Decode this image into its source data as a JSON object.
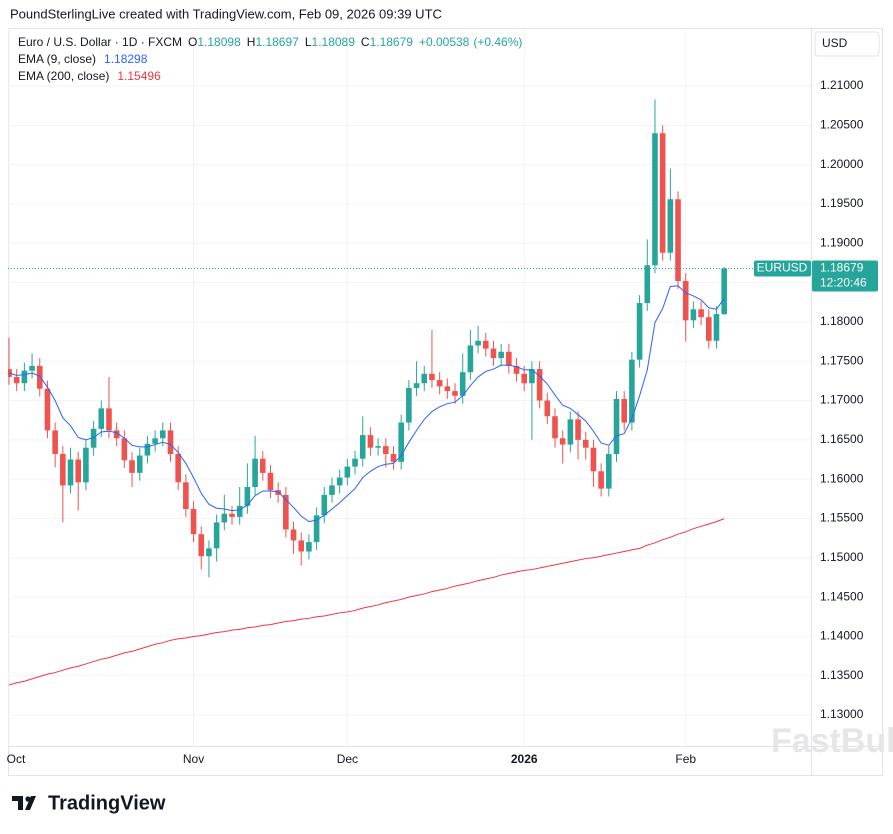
{
  "chart_data": {
    "type": "candlestick",
    "header": "PoundSterlingLive created with TradingView.com, Feb 09, 2026 09:39 UTC",
    "title": "Euro / U.S. Dollar · 1D · FXCM",
    "field_labels": [
      "O",
      "H",
      "L",
      "C"
    ],
    "change": "+0.00538",
    "change_percent": "(+0.46%)",
    "currency": "USD",
    "symbol_tag": "EURUSD",
    "countdown": "12:20:46",
    "footer": "TradingView",
    "watermark": "FastBull",
    "up_color": "#26a69a",
    "down_color": "#ef5350",
    "grid": true,
    "ylim": [
      1.12606,
      1.21738
    ],
    "yticks": [
      {
        "value": 1.13,
        "label": "1.13000"
      },
      {
        "value": 1.135,
        "label": "1.13500"
      },
      {
        "value": 1.14,
        "label": "1.14000"
      },
      {
        "value": 1.145,
        "label": "1.14500"
      },
      {
        "value": 1.15,
        "label": "1.15000"
      },
      {
        "value": 1.155,
        "label": "1.15500"
      },
      {
        "value": 1.16,
        "label": "1.16000"
      },
      {
        "value": 1.165,
        "label": "1.16500"
      },
      {
        "value": 1.17,
        "label": "1.17000"
      },
      {
        "value": 1.175,
        "label": "1.17500"
      },
      {
        "value": 1.18,
        "label": "1.18000"
      },
      {
        "value": 1.185,
        "label": "1.18500"
      },
      {
        "value": 1.19,
        "label": "1.19000"
      },
      {
        "value": 1.195,
        "label": "1.19500"
      },
      {
        "value": 1.2,
        "label": "1.20000"
      },
      {
        "value": 1.205,
        "label": "1.20500"
      },
      {
        "value": 1.21,
        "label": "1.21000"
      }
    ],
    "categories": [
      "Oct",
      null,
      null,
      null,
      null,
      null,
      null,
      null,
      null,
      null,
      null,
      null,
      null,
      null,
      null,
      null,
      null,
      null,
      null,
      null,
      null,
      null,
      null,
      null,
      "Nov",
      null,
      null,
      null,
      null,
      null,
      null,
      null,
      null,
      null,
      null,
      null,
      null,
      null,
      null,
      null,
      null,
      null,
      null,
      null,
      "Dec",
      null,
      null,
      null,
      null,
      null,
      null,
      null,
      null,
      null,
      null,
      null,
      null,
      null,
      null,
      null,
      null,
      null,
      null,
      null,
      null,
      null,
      null,
      "2026",
      null,
      null,
      null,
      null,
      null,
      null,
      null,
      null,
      null,
      null,
      null,
      null,
      null,
      null,
      null,
      null,
      null,
      null,
      null,
      null,
      "Feb",
      null,
      null,
      null,
      null,
      null
    ],
    "open": [
      1.174,
      1.173,
      1.1722,
      1.1738,
      1.1744,
      1.1715,
      1.1662,
      1.1632,
      1.1592,
      1.1625,
      1.1596,
      1.164,
      1.1664,
      1.169,
      1.1662,
      1.1652,
      1.1624,
      1.1608,
      1.163,
      1.1645,
      1.1652,
      1.1662,
      1.1632,
      1.1596,
      1.1562,
      1.153,
      1.1502,
      1.1512,
      1.1545,
      1.1556,
      1.1552,
      1.1566,
      1.159,
      1.1626,
      1.1608,
      1.1586,
      1.158,
      1.1536,
      1.1522,
      1.1508,
      1.152,
      1.1554,
      1.158,
      1.1592,
      1.1602,
      1.1616,
      1.1626,
      1.1656,
      1.164,
      1.1642,
      1.1632,
      1.1622,
      1.1672,
      1.1716,
      1.1722,
      1.1734,
      1.1726,
      1.1718,
      1.1712,
      1.1706,
      1.1736,
      1.177,
      1.1776,
      1.1766,
      1.1754,
      1.1762,
      1.1744,
      1.1734,
      1.1722,
      1.174,
      1.17,
      1.168,
      1.1652,
      1.1644,
      1.1676,
      1.165,
      1.164,
      1.161,
      1.1588,
      1.1632,
      1.1702,
      1.1672,
      1.1752,
      1.1824,
      1.1872,
      1.204,
      1.1888,
      1.1956,
      1.1852,
      1.1802,
      1.1816,
      1.1806,
      1.1776,
      1.18098
    ],
    "high": [
      1.178,
      1.174,
      1.1748,
      1.176,
      1.1754,
      1.1725,
      1.1672,
      1.1642,
      1.164,
      1.1635,
      1.165,
      1.1674,
      1.17,
      1.173,
      1.1672,
      1.1662,
      1.1634,
      1.164,
      1.1655,
      1.1662,
      1.1672,
      1.1672,
      1.1642,
      1.1606,
      1.1572,
      1.154,
      1.1522,
      1.1555,
      1.158,
      1.1566,
      1.159,
      1.162,
      1.1655,
      1.1636,
      1.1618,
      1.1596,
      1.159,
      1.1546,
      1.1532,
      1.153,
      1.1564,
      1.159,
      1.1602,
      1.1612,
      1.1626,
      1.1636,
      1.168,
      1.1666,
      1.1652,
      1.1652,
      1.1642,
      1.1682,
      1.1726,
      1.175,
      1.1744,
      1.179,
      1.1736,
      1.1728,
      1.1722,
      1.176,
      1.179,
      1.1795,
      1.1786,
      1.1776,
      1.1772,
      1.1772,
      1.1754,
      1.1744,
      1.175,
      1.175,
      1.171,
      1.169,
      1.1662,
      1.1686,
      1.1686,
      1.166,
      1.165,
      1.162,
      1.1642,
      1.1712,
      1.1712,
      1.1762,
      1.1834,
      1.1905,
      1.2083,
      1.205,
      1.1995,
      1.1966,
      1.1862,
      1.1826,
      1.1826,
      1.1816,
      1.182,
      1.18697
    ],
    "low": [
      1.172,
      1.1712,
      1.1712,
      1.1728,
      1.1705,
      1.1652,
      1.1615,
      1.1545,
      1.1582,
      1.156,
      1.1586,
      1.163,
      1.1654,
      1.1652,
      1.1642,
      1.1614,
      1.159,
      1.1598,
      1.162,
      1.1635,
      1.1642,
      1.1622,
      1.1586,
      1.1552,
      1.152,
      1.1485,
      1.1475,
      1.1495,
      1.1535,
      1.1542,
      1.1542,
      1.1556,
      1.158,
      1.1598,
      1.1576,
      1.157,
      1.1526,
      1.1505,
      1.149,
      1.1498,
      1.151,
      1.1544,
      1.157,
      1.1582,
      1.1592,
      1.1606,
      1.1616,
      1.163,
      1.163,
      1.1615,
      1.1612,
      1.1612,
      1.1662,
      1.1706,
      1.1712,
      1.1716,
      1.1708,
      1.1702,
      1.1696,
      1.1696,
      1.1726,
      1.176,
      1.1756,
      1.1744,
      1.1744,
      1.1734,
      1.1724,
      1.1712,
      1.165,
      1.169,
      1.167,
      1.164,
      1.162,
      1.1634,
      1.1625,
      1.1625,
      1.159,
      1.1578,
      1.1578,
      1.1622,
      1.1662,
      1.1662,
      1.1742,
      1.1814,
      1.1862,
      1.1878,
      1.1878,
      1.1842,
      1.1775,
      1.1792,
      1.1796,
      1.1766,
      1.1766,
      1.18089
    ],
    "close": [
      1.173,
      1.1722,
      1.1738,
      1.1744,
      1.1715,
      1.1662,
      1.1632,
      1.1592,
      1.1625,
      1.1596,
      1.164,
      1.1664,
      1.169,
      1.1662,
      1.1652,
      1.1624,
      1.1608,
      1.163,
      1.1645,
      1.1652,
      1.1662,
      1.1632,
      1.1596,
      1.1562,
      1.153,
      1.1502,
      1.1512,
      1.1545,
      1.1556,
      1.1552,
      1.1566,
      1.159,
      1.1626,
      1.1608,
      1.1586,
      1.158,
      1.1536,
      1.1522,
      1.1508,
      1.152,
      1.1554,
      1.158,
      1.1592,
      1.1602,
      1.1616,
      1.1626,
      1.1656,
      1.164,
      1.1642,
      1.1632,
      1.1622,
      1.1672,
      1.1716,
      1.1722,
      1.1734,
      1.1726,
      1.1718,
      1.1712,
      1.1706,
      1.1736,
      1.177,
      1.1776,
      1.1766,
      1.1754,
      1.1762,
      1.1744,
      1.1734,
      1.1722,
      1.174,
      1.17,
      1.168,
      1.1652,
      1.1644,
      1.1676,
      1.165,
      1.164,
      1.161,
      1.1588,
      1.1632,
      1.1702,
      1.1672,
      1.1752,
      1.1824,
      1.1872,
      1.204,
      1.1888,
      1.1956,
      1.1852,
      1.1802,
      1.1816,
      1.1806,
      1.1776,
      1.181,
      1.18679
    ],
    "series": [
      {
        "name": "EMA (9, close)",
        "color": "#2962ff",
        "values": [
          1.1735,
          1.1732,
          1.1733,
          1.1735,
          1.1731,
          1.1717,
          1.17,
          1.1678,
          1.1668,
          1.1653,
          1.165,
          1.1653,
          1.166,
          1.1661,
          1.1659,
          1.1652,
          1.1643,
          1.1641,
          1.1641,
          1.1644,
          1.1647,
          1.1644,
          1.1634,
          1.162,
          1.1602,
          1.1582,
          1.1568,
          1.1563,
          1.1562,
          1.156,
          1.1561,
          1.1567,
          1.1579,
          1.1585,
          1.1585,
          1.1584,
          1.1574,
          1.1564,
          1.1553,
          1.1546,
          1.1548,
          1.1554,
          1.1562,
          1.157,
          1.1579,
          1.1588,
          1.1602,
          1.161,
          1.1616,
          1.1619,
          1.162,
          1.163,
          1.1647,
          1.1662,
          1.1676,
          1.1686,
          1.1692,
          1.1696,
          1.1698,
          1.1706,
          1.1719,
          1.173,
          1.1737,
          1.174,
          1.1745,
          1.1745,
          1.1743,
          1.1739,
          1.1739,
          1.1731,
          1.1721,
          1.1707,
          1.1694,
          1.169,
          1.1682,
          1.1674,
          1.1661,
          1.1646,
          1.1643,
          1.1655,
          1.1658,
          1.1677,
          1.1706,
          1.1739,
          1.1799,
          1.1817,
          1.1845,
          1.1846,
          1.1837,
          1.1833,
          1.1828,
          1.1818,
          1.1816,
          1.18298
        ]
      },
      {
        "name": "EMA (200, close)",
        "color": "#f23645",
        "values": [
          1.1338,
          1.1341,
          1.1343,
          1.1346,
          1.1349,
          1.1352,
          1.1354,
          1.1357,
          1.136,
          1.1362,
          1.1365,
          1.1368,
          1.1371,
          1.1373,
          1.1376,
          1.1379,
          1.1381,
          1.1384,
          1.1387,
          1.139,
          1.1392,
          1.1395,
          1.1397,
          1.1398,
          1.14,
          1.1401,
          1.1403,
          1.1405,
          1.1406,
          1.1408,
          1.1409,
          1.1411,
          1.1412,
          1.1414,
          1.1415,
          1.1417,
          1.1419,
          1.142,
          1.1422,
          1.1423,
          1.1425,
          1.1426,
          1.1428,
          1.143,
          1.1431,
          1.1433,
          1.1436,
          1.1438,
          1.144,
          1.1443,
          1.1445,
          1.1447,
          1.145,
          1.1452,
          1.1454,
          1.1457,
          1.1459,
          1.1461,
          1.1464,
          1.1466,
          1.1468,
          1.1471,
          1.1473,
          1.1475,
          1.1478,
          1.148,
          1.1482,
          1.1484,
          1.1485,
          1.1487,
          1.1489,
          1.1491,
          1.1493,
          1.1495,
          1.1497,
          1.1499,
          1.15,
          1.1502,
          1.1504,
          1.1506,
          1.1508,
          1.151,
          1.1512,
          1.1516,
          1.1519,
          1.1523,
          1.1526,
          1.153,
          1.1533,
          1.1537,
          1.154,
          1.1543,
          1.1546,
          1.15496
        ]
      }
    ]
  }
}
